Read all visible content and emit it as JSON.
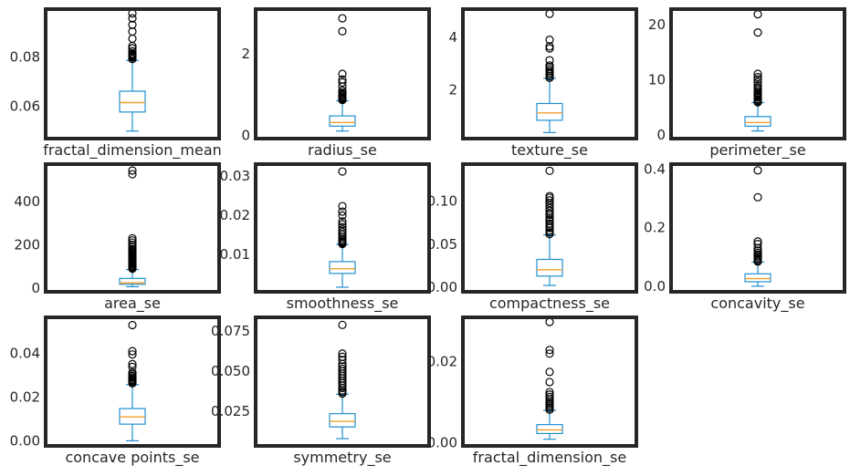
{
  "chart_data": [
    {
      "type": "box",
      "category": "fractal_dimension_mean",
      "ylim": [
        0.0477,
        0.0985
      ],
      "yticks": [
        0.06,
        0.08
      ],
      "ytick_labels": [
        "0.06",
        "0.08"
      ],
      "box": {
        "whisker_low": 0.05,
        "q1": 0.0577,
        "median": 0.0615,
        "q3": 0.0661,
        "whisker_high": 0.0785
      },
      "fliers": [
        0.0791,
        0.0797,
        0.0801,
        0.0804,
        0.0807,
        0.081,
        0.0812,
        0.0822,
        0.0834,
        0.0843,
        0.0873,
        0.0902,
        0.0929,
        0.0955,
        0.0975
      ]
    },
    {
      "type": "box",
      "category": "radius_se",
      "ylim": [
        -0.03,
        3.05
      ],
      "yticks": [
        0,
        2
      ],
      "ytick_labels": [
        "0",
        "2"
      ],
      "box": {
        "whisker_low": 0.11,
        "q1": 0.23,
        "median": 0.32,
        "q3": 0.48,
        "whisker_high": 0.85
      },
      "fliers": [
        0.87,
        0.89,
        0.91,
        0.93,
        0.96,
        0.99,
        1.01,
        1.05,
        1.1,
        1.2,
        1.3,
        1.37,
        1.51,
        2.55,
        2.87
      ]
    },
    {
      "type": "box",
      "category": "texture_se",
      "ylim": [
        0.2,
        5.0
      ],
      "yticks": [
        2,
        4
      ],
      "ytick_labels": [
        "2",
        "4"
      ],
      "box": {
        "whisker_low": 0.36,
        "q1": 0.83,
        "median": 1.11,
        "q3": 1.47,
        "whisker_high": 2.43
      },
      "fliers": [
        2.45,
        2.51,
        2.58,
        2.64,
        2.71,
        2.78,
        2.86,
        2.92,
        3.12,
        3.57,
        3.65,
        3.9,
        4.89
      ]
    },
    {
      "type": "box",
      "category": "perimeter_se",
      "ylim": [
        -0.3,
        22.5
      ],
      "yticks": [
        0,
        10,
        20
      ],
      "ytick_labels": [
        "0",
        "10",
        "20"
      ],
      "box": {
        "whisker_low": 0.76,
        "q1": 1.61,
        "median": 2.29,
        "q3": 3.36,
        "whisker_high": 5.89
      },
      "fliers": [
        5.95,
        6.1,
        6.3,
        6.5,
        6.8,
        7.0,
        7.2,
        7.5,
        7.7,
        8.0,
        8.3,
        8.6,
        9.0,
        9.6,
        10.1,
        10.5,
        11.1,
        18.6,
        21.9
      ]
    },
    {
      "type": "box",
      "category": "area_se",
      "ylim": [
        -8,
        563
      ],
      "yticks": [
        0,
        200,
        400
      ],
      "ytick_labels": [
        "0",
        "200",
        "400"
      ],
      "box": {
        "whisker_low": 6.8,
        "q1": 17.9,
        "median": 24.5,
        "q3": 45.2,
        "whisker_high": 86.2
      },
      "fliers": [
        90,
        95,
        100,
        105,
        110,
        115,
        120,
        125,
        130,
        135,
        140,
        145,
        150,
        155,
        160,
        165,
        170,
        175,
        180,
        190,
        200,
        210,
        220,
        230,
        525,
        542
      ]
    },
    {
      "type": "box",
      "category": "smoothness_se",
      "ylim": [
        0.001,
        0.0325
      ],
      "yticks": [
        0.01,
        0.02,
        0.03
      ],
      "ytick_labels": [
        "0.01",
        "0.02",
        "0.03"
      ],
      "box": {
        "whisker_low": 0.0017,
        "q1": 0.0052,
        "median": 0.0064,
        "q3": 0.0082,
        "whisker_high": 0.0126
      },
      "fliers": [
        0.0127,
        0.0129,
        0.0131,
        0.0133,
        0.0136,
        0.014,
        0.0145,
        0.0151,
        0.0157,
        0.0163,
        0.017,
        0.0177,
        0.0184,
        0.0199,
        0.0209,
        0.0223,
        0.0311
      ]
    },
    {
      "type": "box",
      "category": "compactness_se",
      "ylim": [
        -0.003,
        0.141
      ],
      "yticks": [
        0.0,
        0.05,
        0.1
      ],
      "ytick_labels": [
        "0.00",
        "0.05",
        "0.10"
      ],
      "box": {
        "whisker_low": 0.0023,
        "q1": 0.0131,
        "median": 0.0205,
        "q3": 0.0325,
        "whisker_high": 0.061
      },
      "fliers": [
        0.062,
        0.064,
        0.066,
        0.069,
        0.071,
        0.074,
        0.077,
        0.079,
        0.081,
        0.084,
        0.086,
        0.089,
        0.092,
        0.095,
        0.098,
        0.101,
        0.104,
        0.106,
        0.1354
      ]
    },
    {
      "type": "box",
      "category": "concavity_se",
      "ylim": [
        -0.013,
        0.411
      ],
      "yticks": [
        0.0,
        0.2,
        0.4
      ],
      "ytick_labels": [
        "0.0",
        "0.2",
        "0.4"
      ],
      "box": {
        "whisker_low": 0.0,
        "q1": 0.0151,
        "median": 0.0259,
        "q3": 0.0422,
        "whisker_high": 0.082
      },
      "fliers": [
        0.084,
        0.088,
        0.093,
        0.098,
        0.103,
        0.108,
        0.114,
        0.121,
        0.13,
        0.144,
        0.153,
        0.304,
        0.396
      ]
    },
    {
      "type": "box",
      "category": "concave points_se",
      "ylim": [
        -0.0015,
        0.0555
      ],
      "yticks": [
        0.0,
        0.02,
        0.04
      ],
      "ytick_labels": [
        "0.00",
        "0.02",
        "0.04"
      ],
      "box": {
        "whisker_low": 0.0,
        "q1": 0.0076,
        "median": 0.0109,
        "q3": 0.0147,
        "whisker_high": 0.0256
      },
      "fliers": [
        0.0262,
        0.0268,
        0.0273,
        0.0278,
        0.0284,
        0.029,
        0.0296,
        0.0303,
        0.0312,
        0.0337,
        0.035,
        0.0394,
        0.0409,
        0.0528
      ]
    },
    {
      "type": "box",
      "category": "symmetry_se",
      "ylim": [
        0.0045,
        0.0825
      ],
      "yticks": [
        0.025,
        0.05,
        0.075
      ],
      "ytick_labels": [
        "0.025",
        "0.050",
        "0.075"
      ],
      "box": {
        "whisker_low": 0.0079,
        "q1": 0.0152,
        "median": 0.0187,
        "q3": 0.0235,
        "whisker_high": 0.0356
      },
      "fliers": [
        0.0361,
        0.037,
        0.038,
        0.0395,
        0.041,
        0.0425,
        0.044,
        0.0455,
        0.047,
        0.0485,
        0.05,
        0.0515,
        0.053,
        0.0545,
        0.057,
        0.059,
        0.061,
        0.0789
      ]
    },
    {
      "type": "box",
      "category": "fractal_dimension_se",
      "ylim": [
        -0.0003,
        0.0305
      ],
      "yticks": [
        0.0,
        0.02
      ],
      "ytick_labels": [
        "0.00",
        "0.02"
      ],
      "box": {
        "whisker_low": 0.0009,
        "q1": 0.0023,
        "median": 0.0032,
        "q3": 0.0045,
        "whisker_high": 0.008
      },
      "fliers": [
        0.0082,
        0.0086,
        0.009,
        0.0094,
        0.0098,
        0.0102,
        0.0107,
        0.0113,
        0.0119,
        0.0125,
        0.015,
        0.0175,
        0.022,
        0.0229,
        0.0298
      ]
    }
  ]
}
